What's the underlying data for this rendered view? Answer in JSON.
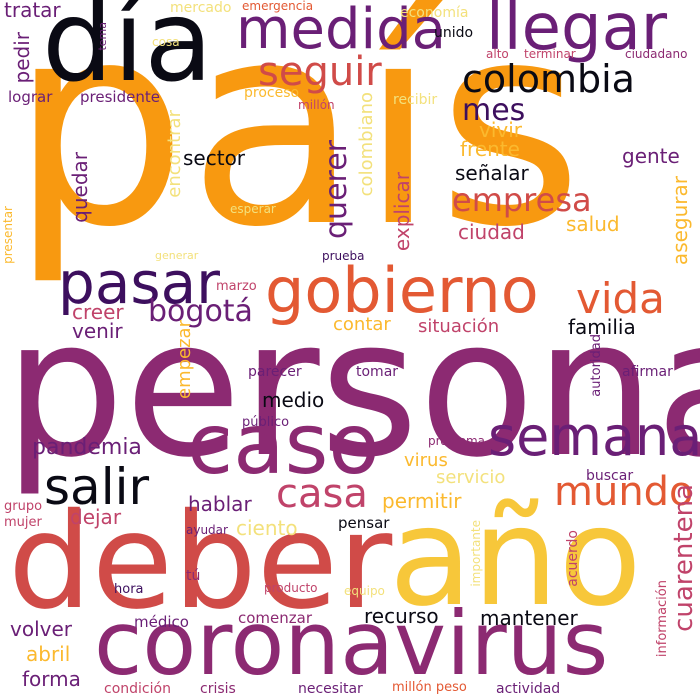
{
  "palette": {
    "orange": "#F89910",
    "amber": "#FBB92E",
    "gold": "#F7C73A",
    "pale": "#F3E17C",
    "coral": "#E35933",
    "red": "#D04B48",
    "rose": "#C0436A",
    "plum": "#8C2A72",
    "purple": "#6A1F76",
    "indigo": "#3D0F5E",
    "ink": "#0A0A14"
  },
  "words": [
    {
      "text": "país",
      "color": "orange",
      "vertical": false
    },
    {
      "text": "persona",
      "color": "plum",
      "vertical": false
    },
    {
      "text": "año",
      "color": "gold",
      "vertical": false
    },
    {
      "text": "deber",
      "color": "red",
      "vertical": false
    },
    {
      "text": "día",
      "color": "ink",
      "vertical": false
    },
    {
      "text": "coronavirus",
      "color": "plum",
      "vertical": false
    },
    {
      "text": "caso",
      "color": "plum",
      "vertical": false
    },
    {
      "text": "gobierno",
      "color": "coral",
      "vertical": false
    },
    {
      "text": "llegar",
      "color": "purple",
      "vertical": false
    },
    {
      "text": "medida",
      "color": "purple",
      "vertical": false
    },
    {
      "text": "semana",
      "color": "purple",
      "vertical": false
    },
    {
      "text": "pasar",
      "color": "indigo",
      "vertical": false
    },
    {
      "text": "mundo",
      "color": "coral",
      "vertical": false
    },
    {
      "text": "salir",
      "color": "ink",
      "vertical": false
    },
    {
      "text": "casa",
      "color": "rose",
      "vertical": false
    },
    {
      "text": "vida",
      "color": "coral",
      "vertical": false
    },
    {
      "text": "colombia",
      "color": "ink",
      "vertical": false
    },
    {
      "text": "seguir",
      "color": "red",
      "vertical": false
    },
    {
      "text": "bogotá",
      "color": "purple",
      "vertical": false
    },
    {
      "text": "empresa",
      "color": "red",
      "vertical": false
    },
    {
      "text": "mes",
      "color": "indigo",
      "vertical": false
    },
    {
      "text": "querer",
      "color": "purple",
      "vertical": true
    },
    {
      "text": "pandemia",
      "color": "purple",
      "vertical": false
    },
    {
      "text": "mantener",
      "color": "ink",
      "vertical": false
    },
    {
      "text": "cuarentena",
      "color": "rose",
      "vertical": true
    },
    {
      "text": "recurso",
      "color": "ink",
      "vertical": false
    },
    {
      "text": "volver",
      "color": "purple",
      "vertical": false
    },
    {
      "text": "forma",
      "color": "purple",
      "vertical": false
    },
    {
      "text": "abril",
      "color": "amber",
      "vertical": false
    },
    {
      "text": "hablar",
      "color": "purple",
      "vertical": false
    },
    {
      "text": "dejar",
      "color": "rose",
      "vertical": false
    },
    {
      "text": "permitir",
      "color": "amber",
      "vertical": false
    },
    {
      "text": "ciento",
      "color": "pale",
      "vertical": false
    },
    {
      "text": "situación",
      "color": "rose",
      "vertical": false
    },
    {
      "text": "familia",
      "color": "ink",
      "vertical": false
    },
    {
      "text": "contar",
      "color": "amber",
      "vertical": false
    },
    {
      "text": "creer",
      "color": "rose",
      "vertical": false
    },
    {
      "text": "venir",
      "color": "purple",
      "vertical": false
    },
    {
      "text": "sector",
      "color": "ink",
      "vertical": false
    },
    {
      "text": "gente",
      "color": "purple",
      "vertical": false
    },
    {
      "text": "frente",
      "color": "amber",
      "vertical": false
    },
    {
      "text": "vivir",
      "color": "amber",
      "vertical": false
    },
    {
      "text": "señalar",
      "color": "ink",
      "vertical": false
    },
    {
      "text": "salud",
      "color": "amber",
      "vertical": false
    },
    {
      "text": "ciudad",
      "color": "rose",
      "vertical": false
    },
    {
      "text": "asegurar",
      "color": "amber",
      "vertical": true
    },
    {
      "text": "explicar",
      "color": "rose",
      "vertical": true
    },
    {
      "text": "colombiano",
      "color": "pale",
      "vertical": true
    },
    {
      "text": "encontrar",
      "color": "pale",
      "vertical": true
    },
    {
      "text": "quedar",
      "color": "purple",
      "vertical": true
    },
    {
      "text": "empezar",
      "color": "amber",
      "vertical": true
    },
    {
      "text": "medio",
      "color": "ink",
      "vertical": false
    },
    {
      "text": "virus",
      "color": "amber",
      "vertical": false
    },
    {
      "text": "servicio",
      "color": "pale",
      "vertical": false
    },
    {
      "text": "pensar",
      "color": "ink",
      "vertical": false
    },
    {
      "text": "tratar",
      "color": "purple",
      "vertical": false
    },
    {
      "text": "pedir",
      "color": "purple",
      "vertical": true
    },
    {
      "text": "lograr",
      "color": "purple",
      "vertical": false
    },
    {
      "text": "presidente",
      "color": "purple",
      "vertical": false
    },
    {
      "text": "proceso",
      "color": "amber",
      "vertical": false
    },
    {
      "text": "millón",
      "color": "rose",
      "vertical": false
    },
    {
      "text": "recibir",
      "color": "pale",
      "vertical": false
    },
    {
      "text": "unido",
      "color": "ink",
      "vertical": false
    },
    {
      "text": "economía",
      "color": "pale",
      "vertical": false
    },
    {
      "text": "mercado",
      "color": "pale",
      "vertical": false
    },
    {
      "text": "emergencia",
      "color": "coral",
      "vertical": false
    },
    {
      "text": "tema",
      "color": "purple",
      "vertical": true
    },
    {
      "text": "cosa",
      "color": "pale",
      "vertical": false
    },
    {
      "text": "alto",
      "color": "rose",
      "vertical": false
    },
    {
      "text": "terminar",
      "color": "rose",
      "vertical": false
    },
    {
      "text": "ciudadano",
      "color": "plum",
      "vertical": false
    },
    {
      "text": "esperar",
      "color": "pale",
      "vertical": false
    },
    {
      "text": "generar",
      "color": "pale",
      "vertical": false
    },
    {
      "text": "prueba",
      "color": "indigo",
      "vertical": false
    },
    {
      "text": "presentar",
      "color": "amber",
      "vertical": true
    },
    {
      "text": "marzo",
      "color": "rose",
      "vertical": false
    },
    {
      "text": "parecer",
      "color": "purple",
      "vertical": false
    },
    {
      "text": "tomar",
      "color": "purple",
      "vertical": false
    },
    {
      "text": "afirmar",
      "color": "purple",
      "vertical": false
    },
    {
      "text": "autoridad",
      "color": "purple",
      "vertical": true
    },
    {
      "text": "público",
      "color": "purple",
      "vertical": false
    },
    {
      "text": "problema",
      "color": "plum",
      "vertical": false
    },
    {
      "text": "buscar",
      "color": "purple",
      "vertical": false
    },
    {
      "text": "grupo",
      "color": "rose",
      "vertical": false
    },
    {
      "text": "mujer",
      "color": "rose",
      "vertical": false
    },
    {
      "text": "ayudar",
      "color": "purple",
      "vertical": false
    },
    {
      "text": "importante",
      "color": "pale",
      "vertical": true
    },
    {
      "text": "acuerdo",
      "color": "rose",
      "vertical": true
    },
    {
      "text": "información",
      "color": "rose",
      "vertical": true
    },
    {
      "text": "hora",
      "color": "indigo",
      "vertical": false
    },
    {
      "text": "tú",
      "color": "plum",
      "vertical": false
    },
    {
      "text": "producto",
      "color": "rose",
      "vertical": false
    },
    {
      "text": "equipo",
      "color": "pale",
      "vertical": false
    },
    {
      "text": "médico",
      "color": "purple",
      "vertical": false
    },
    {
      "text": "comenzar",
      "color": "plum",
      "vertical": false
    },
    {
      "text": "condición",
      "color": "rose",
      "vertical": false
    },
    {
      "text": "crisis",
      "color": "plum",
      "vertical": false
    },
    {
      "text": "necesitar",
      "color": "purple",
      "vertical": false
    },
    {
      "text": "millón peso",
      "color": "coral",
      "vertical": false
    },
    {
      "text": "actividad",
      "color": "purple",
      "vertical": false
    }
  ]
}
